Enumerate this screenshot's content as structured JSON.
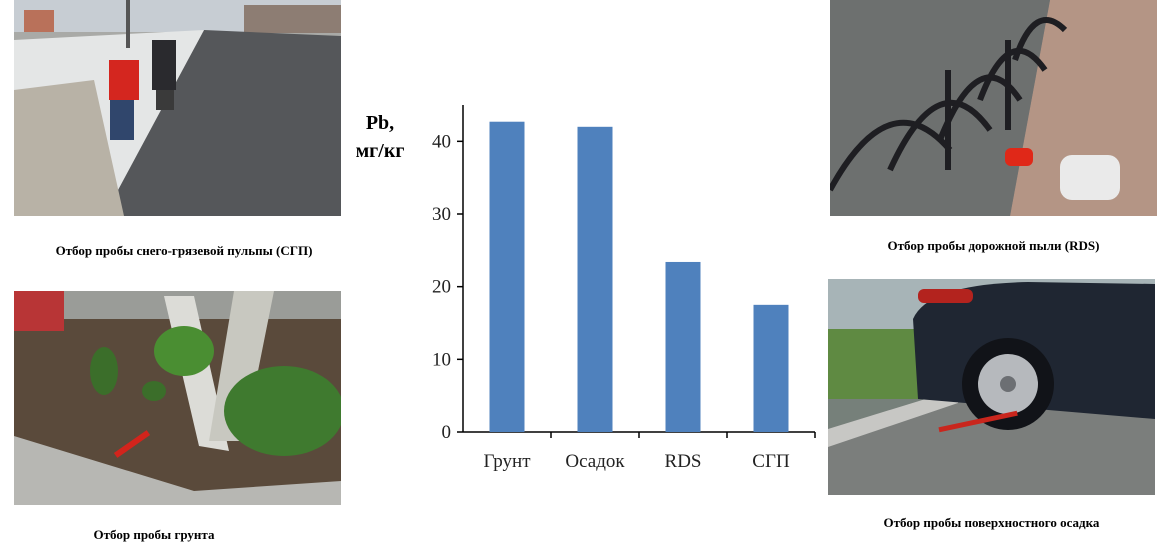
{
  "captions": {
    "slush": "Отбор пробы снего-грязевой пульпы (СГП)",
    "road_dust": "Отбор пробы дорожной пыли (RDS)",
    "soil": "Отбор пробы грунта",
    "sediment": "Отбор пробы поверхностного осадка"
  },
  "photos": {
    "slush": "photo-snow-street-sampling",
    "road_dust": "photo-fence-road-dust",
    "soil": "photo-tree-soil-bed",
    "sediment": "photo-car-curb-sediment"
  },
  "colors": {
    "bar": "#4f81bd",
    "axis": "#000000"
  },
  "chart_data": {
    "type": "bar",
    "categories": [
      "Грунт",
      "Осадок",
      "RDS",
      "СГП"
    ],
    "values": [
      42.7,
      42.0,
      23.4,
      17.5
    ],
    "ylabel_line1": "Pb,",
    "ylabel_line2": "мг/кг",
    "xlabel": "",
    "ylim": [
      0,
      45
    ],
    "yticks": [
      0,
      10,
      20,
      30,
      40
    ],
    "grid": false
  }
}
